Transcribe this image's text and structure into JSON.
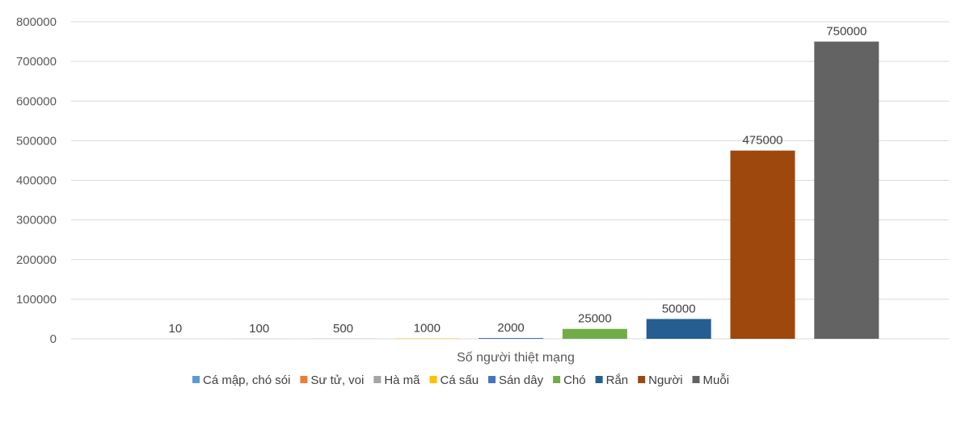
{
  "chart_data": {
    "type": "bar",
    "categories": [
      "Cá mập, chó sói",
      "Sư tử, voi",
      "Hà mã",
      "Cá sấu",
      "Sán dây",
      "Chó",
      "Rắn",
      "Người",
      "Muỗi"
    ],
    "series": [
      {
        "name": "Cá mập, chó sói",
        "values": [
          10,
          0,
          0,
          0,
          0,
          0,
          0,
          0,
          0
        ],
        "color": "#5B9BD5"
      },
      {
        "name": "Sư tử, voi",
        "values": [
          0,
          100,
          0,
          0,
          0,
          0,
          0,
          0,
          0
        ],
        "color": "#ED7D31"
      },
      {
        "name": "Hà mã",
        "values": [
          0,
          0,
          500,
          0,
          0,
          0,
          0,
          0,
          0
        ],
        "color": "#A5A5A5"
      },
      {
        "name": "Cá sấu",
        "values": [
          0,
          0,
          0,
          1000,
          0,
          0,
          0,
          0,
          0
        ],
        "color": "#FFC000"
      },
      {
        "name": "Sán dây",
        "values": [
          0,
          0,
          0,
          0,
          2000,
          0,
          0,
          0,
          0
        ],
        "color": "#4472C4"
      },
      {
        "name": "Chó",
        "values": [
          0,
          0,
          0,
          0,
          0,
          25000,
          0,
          0,
          0
        ],
        "color": "#70AD47"
      },
      {
        "name": "Rắn",
        "values": [
          0,
          0,
          0,
          0,
          0,
          0,
          50000,
          0,
          0
        ],
        "color": "#255E91"
      },
      {
        "name": "Người",
        "values": [
          0,
          0,
          0,
          0,
          0,
          0,
          0,
          475000,
          0
        ],
        "color": "#9E480E"
      },
      {
        "name": "Muỗi",
        "values": [
          0,
          0,
          0,
          0,
          0,
          0,
          0,
          0,
          750000
        ],
        "color": "#636363"
      }
    ],
    "values": [
      10,
      100,
      500,
      1000,
      2000,
      25000,
      50000,
      475000,
      750000
    ],
    "data_labels": [
      "10",
      "100",
      "500",
      "1000",
      "2000",
      "25000",
      "50000",
      "475000",
      "750000"
    ],
    "y_ticks": [
      "0",
      "100000",
      "200000",
      "300000",
      "400000",
      "500000",
      "600000",
      "700000",
      "800000"
    ],
    "xlabel": "Số người thiệt mạng",
    "ylabel": "",
    "ylim": [
      0,
      800000
    ],
    "grid": true,
    "legend_position": "bottom"
  }
}
